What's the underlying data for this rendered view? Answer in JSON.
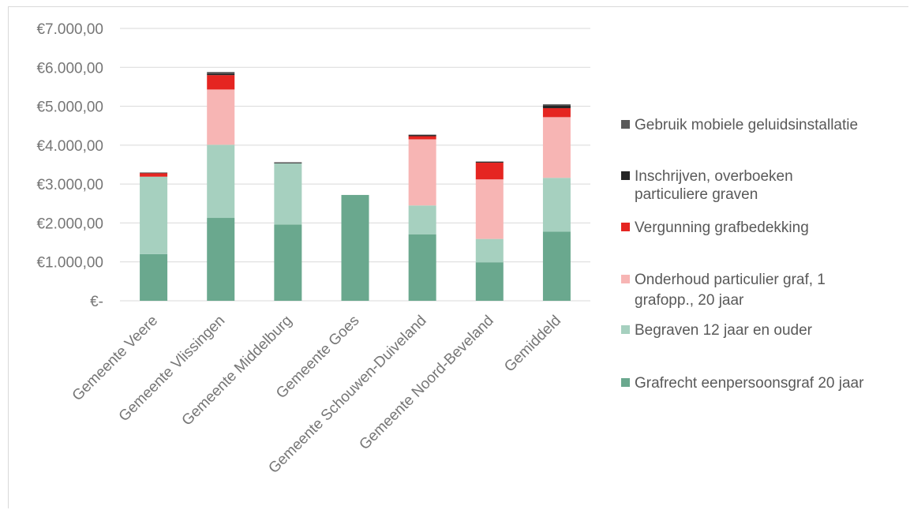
{
  "chart_data": {
    "type": "bar",
    "stacked": true,
    "categories": [
      "Gemeente Veere",
      "Gemeente Vlissingen",
      "Gemeente Middelburg",
      "Gemeente  Goes",
      "Gemeente Schouwen-Duiveland",
      "Gemeente Noord-Beveland",
      "Gemiddeld"
    ],
    "series": [
      {
        "name": "Grafrecht eenpersoonsgraf 20 jaar",
        "color": "#6aa88e",
        "values": [
          1200,
          2130,
          1960,
          2720,
          1710,
          990,
          1780
        ]
      },
      {
        "name": "Begraven 12 jaar en ouder",
        "color": "#a6d0bf",
        "values": [
          1990,
          1880,
          1570,
          0,
          740,
          600,
          1380
        ]
      },
      {
        "name": "Onderhoud particulier graf, 1 grafopp., 20 jaar",
        "color": "#f7b5b4",
        "values": [
          0,
          1420,
          0,
          0,
          1700,
          1530,
          1560
        ]
      },
      {
        "name": "Vergunning grafbedekking",
        "color": "#e52521",
        "values": [
          90,
          370,
          0,
          0,
          80,
          430,
          230
        ]
      },
      {
        "name": "Inschrijven, overboeken particuliere graven",
        "color": "#262626",
        "values": [
          10,
          40,
          15,
          0,
          30,
          20,
          70
        ]
      },
      {
        "name": "Gebruik mobiele geluidsinstallatie",
        "color": "#595959",
        "values": [
          10,
          40,
          15,
          0,
          10,
          10,
          30
        ]
      }
    ],
    "y_ticks": [
      "€-",
      "€1.000,00",
      "€2.000,00",
      "€3.000,00",
      "€4.000,00",
      "€5.000,00",
      "€6.000,00",
      "€7.000,00"
    ],
    "ylim": [
      0,
      7000
    ],
    "grid": true,
    "legend_position": "right",
    "legend_order": [
      5,
      4,
      3,
      2,
      1,
      0
    ],
    "title": "",
    "xlabel": "",
    "ylabel": ""
  }
}
